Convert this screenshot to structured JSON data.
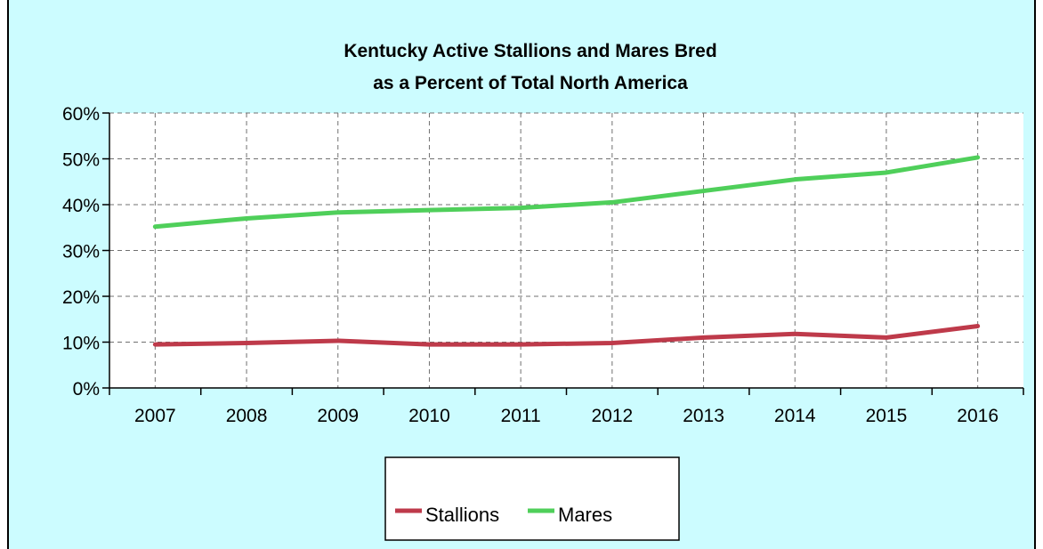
{
  "chart_data": {
    "type": "line",
    "title": "Kentucky Active Stallions and Mares Bred",
    "subtitle": "as a Percent of Total North America",
    "categories": [
      "2007",
      "2008",
      "2009",
      "2010",
      "2011",
      "2012",
      "2013",
      "2014",
      "2015",
      "2016"
    ],
    "series": [
      {
        "name": "Stallions",
        "color": "#be3a4a",
        "values": [
          9.5,
          9.8,
          10.3,
          9.5,
          9.5,
          9.8,
          11.0,
          11.8,
          11.0,
          13.5
        ]
      },
      {
        "name": "Mares",
        "color": "#4fcf5a",
        "values": [
          35.2,
          37.0,
          38.3,
          38.8,
          39.3,
          40.5,
          43.0,
          45.5,
          47.0,
          50.3
        ]
      }
    ],
    "y_ticks": [
      "0%",
      "10%",
      "20%",
      "30%",
      "40%",
      "50%",
      "60%"
    ],
    "ylim": [
      0,
      60
    ],
    "grid": true,
    "legend_position": "bottom",
    "background_color": "#ccfcff"
  }
}
